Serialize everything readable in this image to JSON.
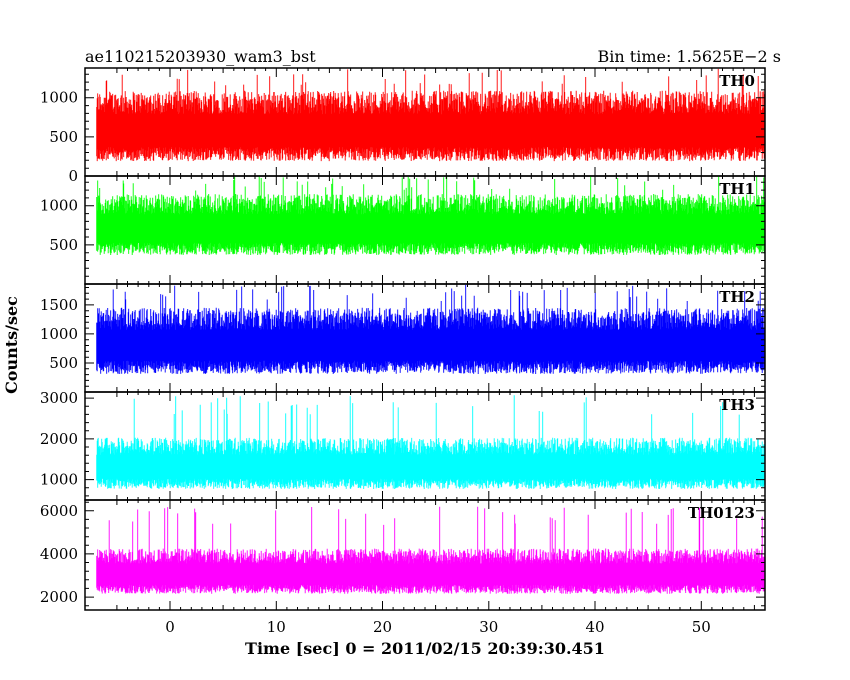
{
  "chart_data": {
    "type": "line",
    "title_left": "ae110215203930_wam3_bst",
    "title_right": "Bin time: 1.5625E−2 s",
    "xlabel": "Time [sec] 0 = 2011/02/15 20:39:30.451",
    "ylabel": "Counts/sec",
    "xlim": [
      -8,
      56
    ],
    "data_x_range": [
      -8,
      56
    ],
    "x_ticks": [
      0,
      10,
      20,
      30,
      40,
      50
    ],
    "grid": false,
    "series": [
      {
        "name": "TH0",
        "color": "#ff0000",
        "ylim": [
          0,
          1380
        ],
        "y_ticks": [
          0,
          500,
          1000
        ],
        "mean": 640,
        "spread": 300,
        "min": 80,
        "max": 1380
      },
      {
        "name": "TH1",
        "color": "#00ff00",
        "ylim": [
          0,
          1380
        ],
        "y_ticks": [
          500,
          1000
        ],
        "mean": 760,
        "spread": 260,
        "min": 280,
        "max": 1380
      },
      {
        "name": "TH2",
        "color": "#0000ff",
        "ylim": [
          0,
          1860
        ],
        "y_ticks": [
          500,
          1000,
          1500
        ],
        "mean": 880,
        "spread": 380,
        "min": 150,
        "max": 1850
      },
      {
        "name": "TH3",
        "color": "#00ffff",
        "ylim": [
          500,
          3150
        ],
        "y_ticks": [
          1000,
          2000,
          3000
        ],
        "mean": 1400,
        "spread": 420,
        "min": 600,
        "max": 3100
      },
      {
        "name": "TH0123",
        "color": "#ff00ff",
        "ylim": [
          1400,
          6500
        ],
        "y_ticks": [
          2000,
          4000,
          6000
        ],
        "mean": 3200,
        "spread": 700,
        "min": 1600,
        "max": 6200
      }
    ]
  }
}
